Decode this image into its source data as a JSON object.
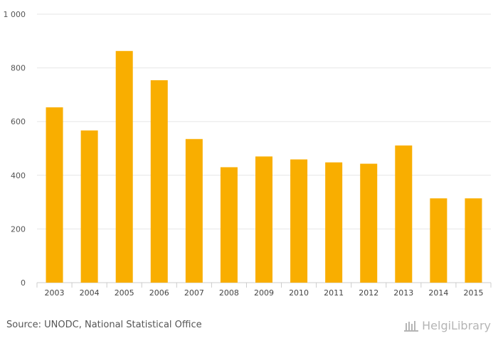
{
  "chart_data": {
    "type": "bar",
    "categories": [
      "2003",
      "2004",
      "2005",
      "2006",
      "2007",
      "2008",
      "2009",
      "2010",
      "2011",
      "2012",
      "2013",
      "2014",
      "2015"
    ],
    "values": [
      653,
      567,
      863,
      754,
      535,
      430,
      470,
      459,
      448,
      443,
      511,
      314,
      314
    ],
    "ylim": [
      0,
      1000
    ],
    "yticks": [
      0,
      200,
      400,
      600,
      800,
      1000
    ],
    "ytick_labels": [
      "0",
      "200",
      "400",
      "600",
      "800",
      "1 000"
    ],
    "grid": true,
    "bar_color": "#f9ae00",
    "grid_color": "#e6e6e6",
    "axis_color": "#cccccc"
  },
  "footer": {
    "source": "Source: UNODC, National Statistical Office",
    "brand": "HelgiLibrary"
  }
}
